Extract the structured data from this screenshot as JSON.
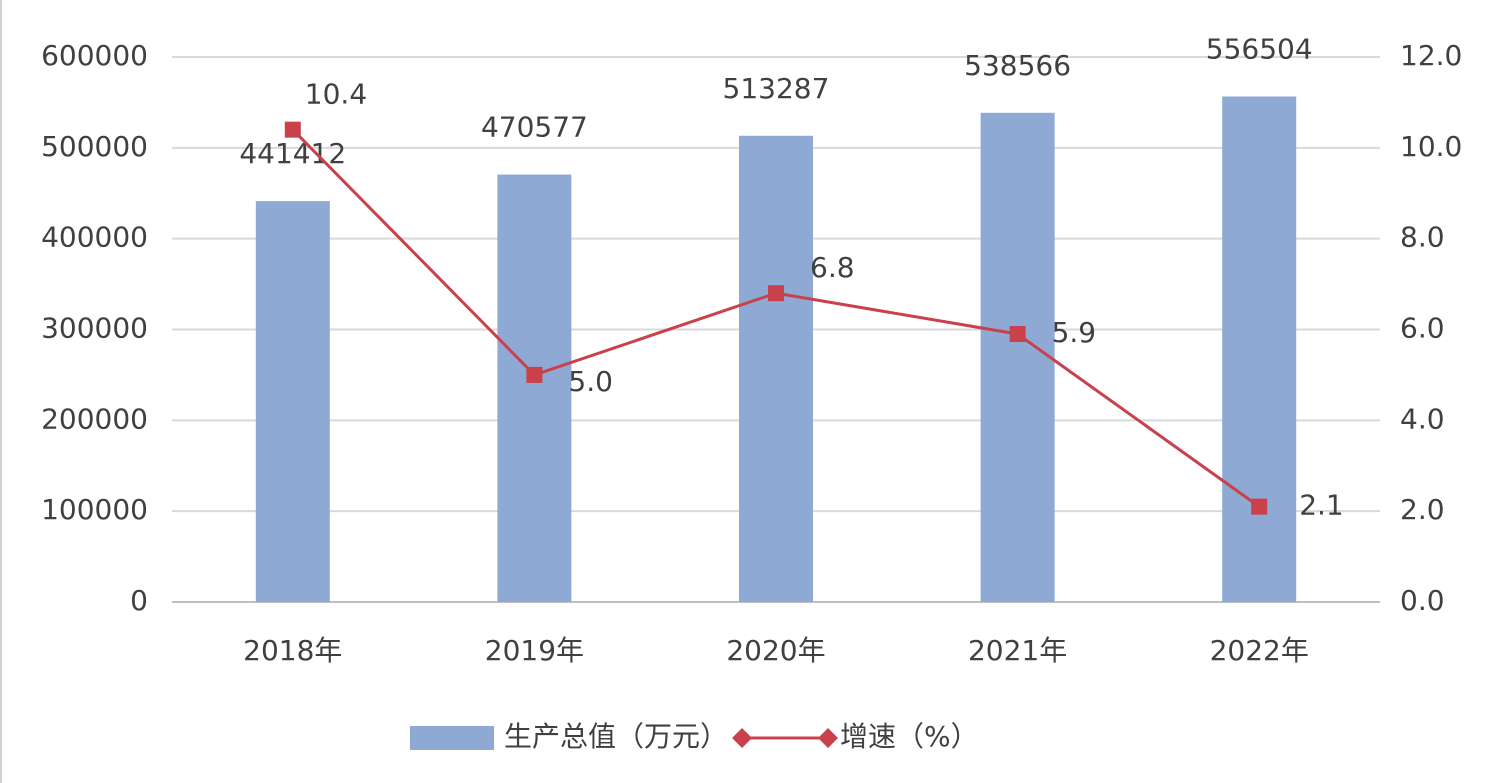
{
  "chart_data": {
    "type": "bar",
    "categories": [
      "2018年",
      "2019年",
      "2020年",
      "2021年",
      "2022年"
    ],
    "series": [
      {
        "name": "生产总值（万元）",
        "color": "#8eaad4",
        "type": "bar",
        "values": [
          441412,
          470577,
          513287,
          538566,
          556504
        ]
      },
      {
        "name": "增速（%）",
        "color": "#c9414b",
        "type": "line",
        "axis": "y2",
        "values": [
          10.4,
          5.0,
          6.8,
          5.9,
          2.1
        ],
        "value_labels": [
          "10.4",
          "5.0",
          "6.8",
          "5.9",
          "2.1"
        ]
      }
    ],
    "ylim": [
      0,
      600000
    ],
    "yticks": [
      0,
      100000,
      200000,
      300000,
      400000,
      500000,
      600000
    ],
    "y2lim": [
      0,
      12
    ],
    "y2ticks": [
      {
        "value": 0,
        "label": "0.0"
      },
      {
        "value": 2,
        "label": "2.0"
      },
      {
        "value": 4,
        "label": "4.0"
      },
      {
        "value": 6,
        "label": "6.0"
      },
      {
        "value": 8,
        "label": "8.0"
      },
      {
        "value": 10,
        "label": "10.0"
      },
      {
        "value": 12,
        "label": "12.0"
      }
    ],
    "grid": true,
    "legend": "bottom"
  }
}
